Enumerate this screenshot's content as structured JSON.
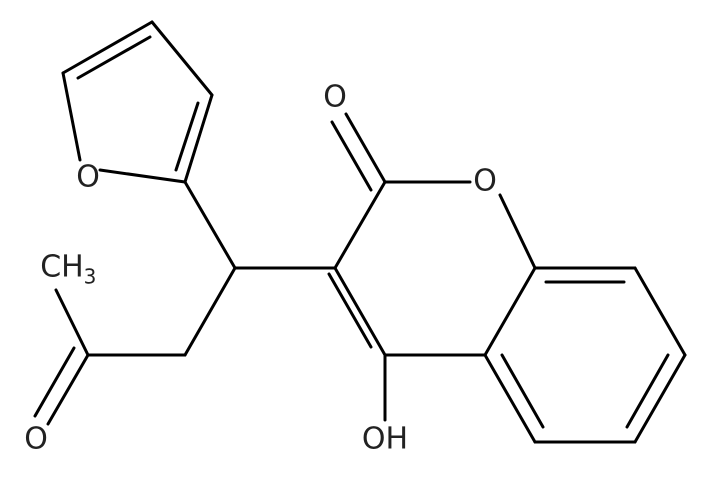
{
  "atoms": {
    "furan_o": "O",
    "carbonyl_o": "O",
    "ring_o": "O",
    "hydroxyl": "OH",
    "ketone_o": "O",
    "methyl": "CH",
    "methyl_sub": "3"
  }
}
